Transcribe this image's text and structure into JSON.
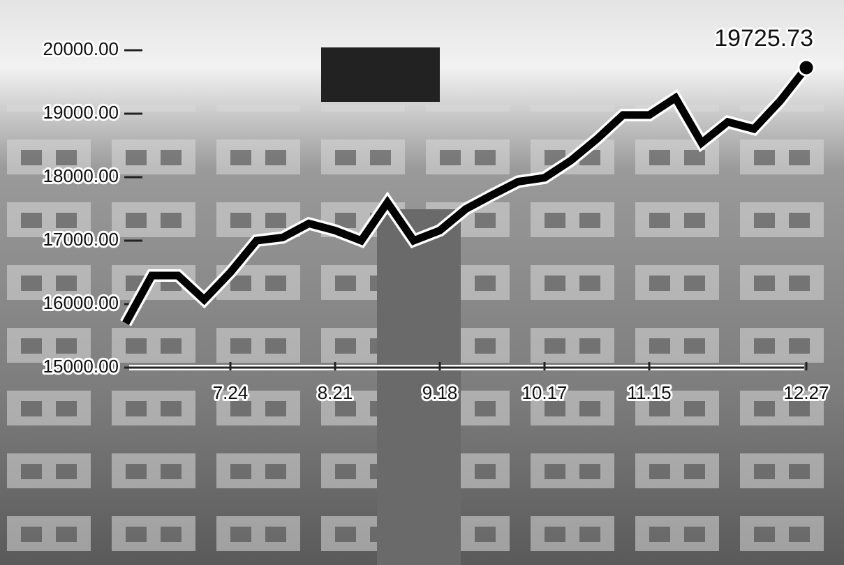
{
  "chart_data": {
    "type": "line",
    "categories": [
      null,
      null,
      null,
      null,
      "7.24",
      null,
      null,
      null,
      "8.21",
      null,
      null,
      null,
      "9.18",
      null,
      null,
      null,
      "10.17",
      null,
      null,
      null,
      "11.15",
      null,
      null,
      null,
      null,
      null,
      "12.27"
    ],
    "series": [
      {
        "color": "#000000",
        "values": [
          15700,
          16450,
          16450,
          16070,
          16500,
          17000,
          17050,
          17270,
          17160,
          17000,
          17600,
          17000,
          17160,
          17500,
          17720,
          17930,
          17990,
          18260,
          18600,
          18980,
          18980,
          19250,
          18540,
          18870,
          18760,
          19200,
          19725.73
        ],
        "value_labels": [
          null,
          null,
          null,
          null,
          null,
          null,
          null,
          null,
          null,
          null,
          null,
          null,
          null,
          null,
          null,
          null,
          null,
          null,
          null,
          null,
          null,
          null,
          null,
          null,
          null,
          null,
          "19725.73"
        ]
      }
    ],
    "ylim": [
      15000,
      20000
    ],
    "yticks": [
      {
        "value": 15000,
        "label": "15000.00"
      },
      {
        "value": 16000,
        "label": "16000.00"
      },
      {
        "value": 17000,
        "label": "17000.00"
      },
      {
        "value": 18000,
        "label": "18000.00"
      },
      {
        "value": 19000,
        "label": "19000.00"
      },
      {
        "value": 20000,
        "label": "20000.00"
      }
    ]
  }
}
